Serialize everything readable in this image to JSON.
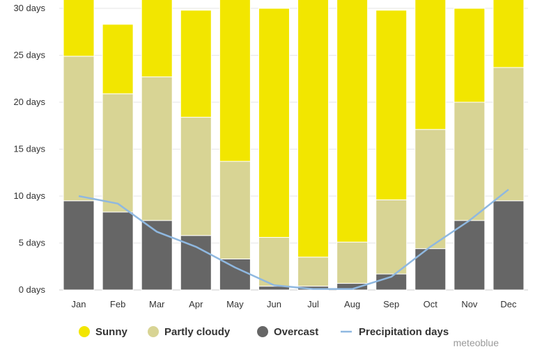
{
  "chart_data": {
    "type": "bar",
    "stacked": true,
    "categories": [
      "Jan",
      "Feb",
      "Mar",
      "Apr",
      "May",
      "Jun",
      "Jul",
      "Aug",
      "Sep",
      "Oct",
      "Nov",
      "Dec"
    ],
    "series": [
      {
        "name": "Overcast",
        "color": "#666666",
        "values": [
          9.5,
          8.3,
          7.4,
          5.8,
          3.3,
          0.4,
          0.4,
          0.7,
          1.7,
          4.4,
          7.4,
          9.5
        ]
      },
      {
        "name": "Partly cloudy",
        "color": "#d8d494",
        "values": [
          15.4,
          12.6,
          15.3,
          12.6,
          10.4,
          5.2,
          3.1,
          4.4,
          7.9,
          12.7,
          12.6,
          14.2
        ]
      },
      {
        "name": "Sunny",
        "color": "#f2e600",
        "values": [
          6.1,
          7.4,
          8.3,
          11.4,
          17.3,
          24.4,
          27.5,
          25.9,
          20.2,
          13.9,
          10.0,
          7.3
        ]
      }
    ],
    "line_series": {
      "name": "Precipitation days",
      "color": "#8fb8e0",
      "values": [
        10.0,
        9.2,
        6.2,
        4.6,
        2.4,
        0.5,
        0.1,
        0.1,
        1.4,
        4.6,
        7.4,
        10.7
      ]
    },
    "ylim": [
      0,
      30
    ],
    "y_ticks": [
      {
        "value": 0,
        "label": "0 days"
      },
      {
        "value": 5,
        "label": "5 days"
      },
      {
        "value": 10,
        "label": "10 days"
      },
      {
        "value": 15,
        "label": "15 days"
      },
      {
        "value": 20,
        "label": "20 days"
      },
      {
        "value": 25,
        "label": "25 days"
      },
      {
        "value": 30,
        "label": "30 days"
      }
    ],
    "grid": true,
    "legend_position": "bottom",
    "legend": [
      {
        "label": "Sunny",
        "color": "#f2e600",
        "marker": "circle"
      },
      {
        "label": "Partly cloudy",
        "color": "#d8d494",
        "marker": "circle"
      },
      {
        "label": "Overcast",
        "color": "#666666",
        "marker": "circle"
      },
      {
        "label": "Precipitation days",
        "color": "#8fb8e0",
        "marker": "line"
      }
    ]
  },
  "credit": "meteoblue"
}
